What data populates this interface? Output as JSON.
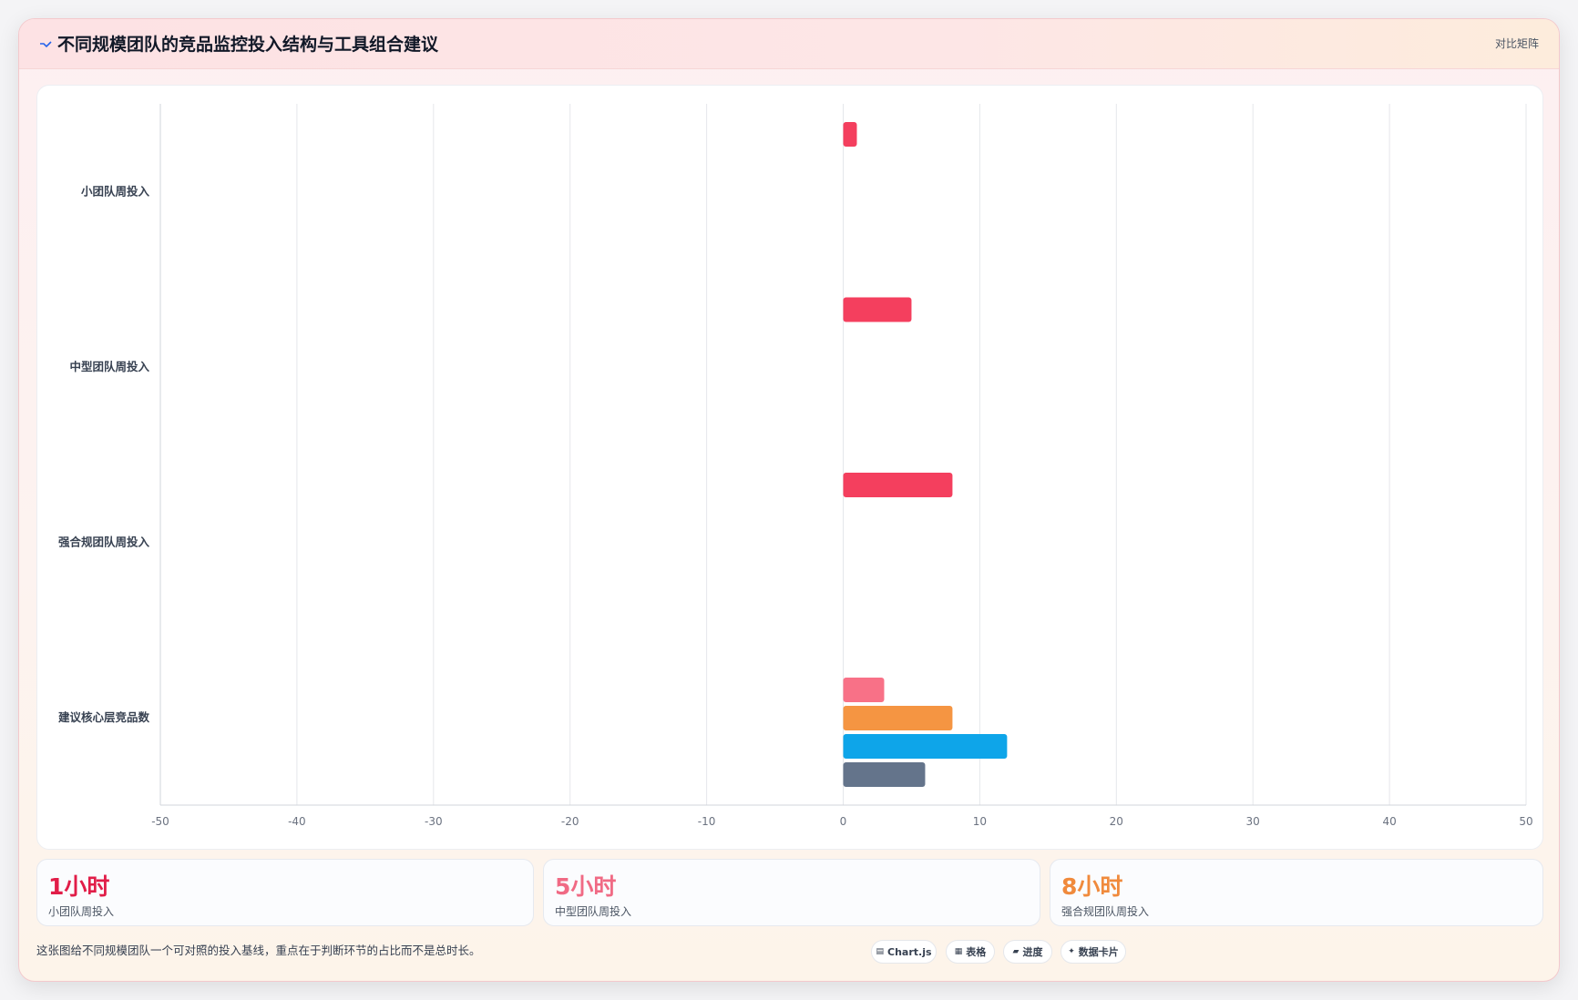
{
  "header": {
    "title": "不同规模团队的竞品监控投入结构与工具组合建议",
    "link": "对比矩阵",
    "icon": "trend-line-icon"
  },
  "chart_data": {
    "type": "bar",
    "orientation": "horizontal",
    "categories": [
      "小团队周投入",
      "中型团队周投入",
      "强合规团队周投入",
      "建议核心层竞品数"
    ],
    "series": [
      {
        "values": [
          1,
          5,
          8,
          3
        ],
        "color": "#f43f5e"
      },
      {
        "values": [
          null,
          null,
          null,
          8
        ],
        "color": "#f59542"
      },
      {
        "values": [
          null,
          null,
          null,
          12
        ],
        "color": "#0ea5e9"
      },
      {
        "values": [
          null,
          null,
          null,
          6
        ],
        "color": "#64748b"
      }
    ],
    "category_colors_last_row": [
      "#f87187",
      "#f59542",
      "#0ea5e9",
      "#64748b"
    ],
    "xlim": [
      -50,
      50
    ],
    "xticks": [
      "-50",
      "-40",
      "-30",
      "-20",
      "-10",
      "0",
      "10",
      "20",
      "30",
      "40",
      "50"
    ],
    "grid": true,
    "legend": "none",
    "title": "",
    "xlabel": "",
    "ylabel": ""
  },
  "stats": [
    {
      "value": "1小时",
      "label": "小团队周投入",
      "color": "#e11d48"
    },
    {
      "value": "5小时",
      "label": "中型团队周投入",
      "color": "#f06a84"
    },
    {
      "value": "8小时",
      "label": "强合规团队周投入",
      "color": "#f08a3c"
    }
  ],
  "footnote": "这张图给不同规模团队一个可对照的投入基线，重点在于判断环节的占比而不是总时长。",
  "chips": [
    {
      "icon": "▤",
      "icon_name": "chart-icon",
      "label": "Chart.js"
    },
    {
      "icon": "▦",
      "icon_name": "table-icon",
      "label": "表格"
    },
    {
      "icon": "▰",
      "icon_name": "progress-icon",
      "label": "进度"
    },
    {
      "icon": "✦",
      "icon_name": "sparkle-icon",
      "label": "数据卡片"
    }
  ]
}
